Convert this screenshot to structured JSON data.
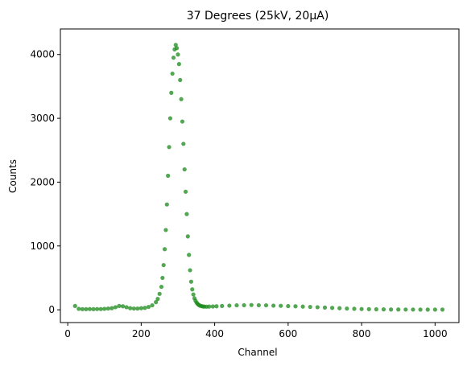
{
  "chart_data": {
    "type": "scatter",
    "title": "37 Degrees (25kV, 20μA)",
    "xlabel": "Channel",
    "ylabel": "Counts",
    "xlim": [
      -20,
      1065
    ],
    "ylim": [
      -200,
      4400
    ],
    "xticks": [
      0,
      200,
      400,
      600,
      800,
      1000
    ],
    "xtick_labels": [
      "0",
      "200",
      "400",
      "600",
      "800",
      "1000"
    ],
    "yticks": [
      0,
      1000,
      2000,
      3000,
      4000
    ],
    "ytick_labels": [
      "0",
      "1000",
      "2000",
      "3000",
      "4000"
    ],
    "grid": false,
    "legend": "none",
    "marker_color": "#1a8a1a",
    "series": [
      {
        "x": [
          20,
          30,
          40,
          50,
          60,
          70,
          80,
          90,
          100,
          110,
          120,
          130,
          140,
          150,
          160,
          170,
          180,
          190,
          200,
          210,
          220,
          230,
          240,
          245,
          250,
          255,
          258,
          261,
          264,
          267,
          270,
          273,
          276,
          279,
          282,
          285,
          288,
          291,
          294,
          297,
          300,
          303,
          306,
          309,
          312,
          315,
          318,
          321,
          324,
          327,
          330,
          333,
          336,
          339,
          342,
          345,
          348,
          351,
          354,
          357,
          360,
          364,
          368,
          372,
          378,
          385,
          395,
          405,
          420,
          440,
          460,
          480,
          500,
          520,
          540,
          560,
          580,
          600,
          620,
          640,
          660,
          680,
          700,
          720,
          740,
          760,
          780,
          800,
          820,
          840,
          860,
          880,
          900,
          920,
          940,
          960,
          980,
          1000,
          1020
        ],
        "y": [
          60,
          15,
          10,
          10,
          12,
          10,
          12,
          12,
          15,
          20,
          25,
          40,
          60,
          55,
          40,
          25,
          20,
          20,
          25,
          30,
          45,
          70,
          120,
          170,
          250,
          360,
          500,
          700,
          950,
          1250,
          1650,
          2100,
          2550,
          3000,
          3400,
          3700,
          3950,
          4080,
          4150,
          4100,
          4000,
          3850,
          3600,
          3300,
          2950,
          2600,
          2200,
          1850,
          1500,
          1150,
          860,
          620,
          440,
          320,
          240,
          180,
          140,
          110,
          90,
          75,
          65,
          58,
          52,
          50,
          48,
          50,
          52,
          55,
          60,
          65,
          70,
          72,
          75,
          72,
          70,
          65,
          62,
          58,
          55,
          50,
          45,
          40,
          35,
          30,
          25,
          20,
          16,
          12,
          10,
          8,
          6,
          5,
          5,
          4,
          4,
          3,
          3,
          3,
          3
        ]
      }
    ]
  }
}
